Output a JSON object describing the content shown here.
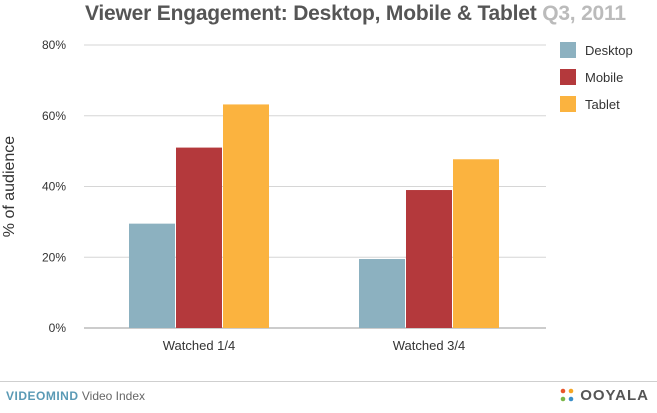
{
  "chart_data": {
    "type": "bar",
    "title": "Viewer Engagement: Desktop, Mobile & Tablet",
    "title_period": "Q3, 2011",
    "xlabel": "",
    "ylabel": "% of audience",
    "ylim": [
      0,
      80
    ],
    "yticks": [
      "0%",
      "20%",
      "40%",
      "60%",
      "80%"
    ],
    "ytick_values": [
      0,
      20,
      40,
      60,
      80
    ],
    "grid": true,
    "legend_position": "right",
    "categories": [
      "Watched 1/4",
      "Watched 3/4"
    ],
    "series": [
      {
        "name": "Desktop",
        "color": "#8cb1c0",
        "values": [
          29.5,
          19.5
        ]
      },
      {
        "name": "Mobile",
        "color": "#b4393c",
        "values": [
          51,
          39
        ]
      },
      {
        "name": "Tablet",
        "color": "#fbb33f",
        "values": [
          63.2,
          47.7
        ]
      }
    ]
  },
  "footer": {
    "brand": "VIDEOMIND",
    "index": "Video Index",
    "logo": "OOYALA"
  }
}
